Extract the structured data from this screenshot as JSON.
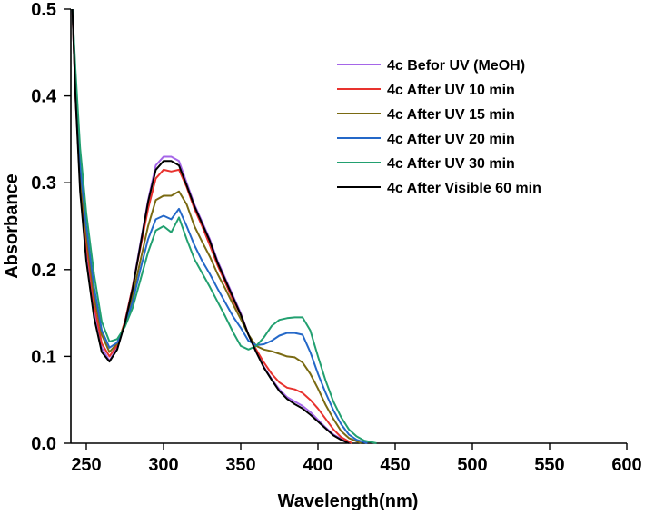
{
  "chart_data": {
    "type": "line",
    "title": "",
    "xlabel": "Wavelength(nm)",
    "ylabel": "Absorbance",
    "xlim": [
      240,
      600
    ],
    "ylim": [
      0.0,
      0.5
    ],
    "x_ticks": [
      250,
      300,
      350,
      400,
      450,
      500,
      550,
      600
    ],
    "y_ticks": [
      0.0,
      0.1,
      0.2,
      0.3,
      0.4,
      0.5
    ],
    "x_tick_labels": [
      "250",
      "300",
      "350",
      "400",
      "450",
      "500",
      "550",
      "600"
    ],
    "y_tick_labels": [
      "0.0",
      "0.1",
      "0.2",
      "0.3",
      "0.4",
      "0.5"
    ],
    "grid": false,
    "legend_position": "top-right",
    "series": [
      {
        "name": "4c Befor UV (MeOH)",
        "color": "#a566e8",
        "points": [
          [
            241,
            0.5
          ],
          [
            243,
            0.4
          ],
          [
            246,
            0.3
          ],
          [
            250,
            0.22
          ],
          [
            255,
            0.15
          ],
          [
            260,
            0.11
          ],
          [
            265,
            0.095
          ],
          [
            270,
            0.11
          ],
          [
            275,
            0.14
          ],
          [
            280,
            0.18
          ],
          [
            285,
            0.23
          ],
          [
            290,
            0.28
          ],
          [
            295,
            0.32
          ],
          [
            300,
            0.33
          ],
          [
            305,
            0.33
          ],
          [
            310,
            0.325
          ],
          [
            315,
            0.3
          ],
          [
            320,
            0.275
          ],
          [
            325,
            0.255
          ],
          [
            330,
            0.235
          ],
          [
            335,
            0.21
          ],
          [
            340,
            0.19
          ],
          [
            345,
            0.17
          ],
          [
            350,
            0.15
          ],
          [
            355,
            0.125
          ],
          [
            360,
            0.105
          ],
          [
            365,
            0.088
          ],
          [
            370,
            0.074
          ],
          [
            375,
            0.062
          ],
          [
            380,
            0.053
          ],
          [
            385,
            0.048
          ],
          [
            390,
            0.043
          ],
          [
            395,
            0.036
          ],
          [
            400,
            0.027
          ],
          [
            405,
            0.018
          ],
          [
            410,
            0.01
          ],
          [
            415,
            0.005
          ],
          [
            420,
            0.0
          ]
        ]
      },
      {
        "name": "4c After UV 10 min",
        "color": "#e8322e",
        "points": [
          [
            241,
            0.5
          ],
          [
            243,
            0.4
          ],
          [
            246,
            0.3
          ],
          [
            250,
            0.23
          ],
          [
            255,
            0.16
          ],
          [
            260,
            0.115
          ],
          [
            265,
            0.1
          ],
          [
            270,
            0.113
          ],
          [
            275,
            0.14
          ],
          [
            280,
            0.18
          ],
          [
            285,
            0.225
          ],
          [
            290,
            0.27
          ],
          [
            295,
            0.305
          ],
          [
            300,
            0.315
          ],
          [
            305,
            0.313
          ],
          [
            310,
            0.315
          ],
          [
            315,
            0.295
          ],
          [
            320,
            0.27
          ],
          [
            325,
            0.25
          ],
          [
            330,
            0.228
          ],
          [
            335,
            0.205
          ],
          [
            340,
            0.185
          ],
          [
            345,
            0.165
          ],
          [
            350,
            0.148
          ],
          [
            355,
            0.125
          ],
          [
            360,
            0.108
          ],
          [
            365,
            0.093
          ],
          [
            370,
            0.08
          ],
          [
            375,
            0.07
          ],
          [
            380,
            0.064
          ],
          [
            385,
            0.062
          ],
          [
            390,
            0.058
          ],
          [
            395,
            0.05
          ],
          [
            400,
            0.04
          ],
          [
            405,
            0.028
          ],
          [
            410,
            0.016
          ],
          [
            415,
            0.007
          ],
          [
            422,
            0.0
          ]
        ]
      },
      {
        "name": "4c After UV 15 min",
        "color": "#7a6a12",
        "points": [
          [
            241,
            0.5
          ],
          [
            243,
            0.41
          ],
          [
            246,
            0.31
          ],
          [
            250,
            0.24
          ],
          [
            255,
            0.17
          ],
          [
            260,
            0.125
          ],
          [
            265,
            0.105
          ],
          [
            270,
            0.115
          ],
          [
            275,
            0.138
          ],
          [
            280,
            0.17
          ],
          [
            285,
            0.21
          ],
          [
            290,
            0.25
          ],
          [
            295,
            0.28
          ],
          [
            300,
            0.285
          ],
          [
            305,
            0.285
          ],
          [
            310,
            0.29
          ],
          [
            315,
            0.275
          ],
          [
            320,
            0.25
          ],
          [
            325,
            0.232
          ],
          [
            330,
            0.215
          ],
          [
            335,
            0.195
          ],
          [
            340,
            0.178
          ],
          [
            345,
            0.16
          ],
          [
            350,
            0.143
          ],
          [
            355,
            0.125
          ],
          [
            360,
            0.112
          ],
          [
            365,
            0.108
          ],
          [
            370,
            0.106
          ],
          [
            375,
            0.103
          ],
          [
            380,
            0.1
          ],
          [
            385,
            0.099
          ],
          [
            390,
            0.093
          ],
          [
            395,
            0.08
          ],
          [
            400,
            0.063
          ],
          [
            405,
            0.044
          ],
          [
            410,
            0.028
          ],
          [
            415,
            0.014
          ],
          [
            420,
            0.006
          ],
          [
            428,
            0.0
          ]
        ]
      },
      {
        "name": "4c After UV 20 min",
        "color": "#2468c8",
        "points": [
          [
            241,
            0.5
          ],
          [
            243,
            0.42
          ],
          [
            246,
            0.32
          ],
          [
            250,
            0.25
          ],
          [
            255,
            0.18
          ],
          [
            260,
            0.13
          ],
          [
            265,
            0.11
          ],
          [
            270,
            0.116
          ],
          [
            275,
            0.135
          ],
          [
            280,
            0.163
          ],
          [
            285,
            0.2
          ],
          [
            290,
            0.235
          ],
          [
            295,
            0.258
          ],
          [
            300,
            0.262
          ],
          [
            305,
            0.258
          ],
          [
            310,
            0.27
          ],
          [
            315,
            0.25
          ],
          [
            320,
            0.228
          ],
          [
            325,
            0.21
          ],
          [
            330,
            0.195
          ],
          [
            335,
            0.178
          ],
          [
            340,
            0.162
          ],
          [
            345,
            0.146
          ],
          [
            350,
            0.133
          ],
          [
            355,
            0.118
          ],
          [
            360,
            0.113
          ],
          [
            365,
            0.114
          ],
          [
            370,
            0.118
          ],
          [
            375,
            0.124
          ],
          [
            380,
            0.127
          ],
          [
            385,
            0.127
          ],
          [
            390,
            0.125
          ],
          [
            395,
            0.105
          ],
          [
            400,
            0.08
          ],
          [
            405,
            0.058
          ],
          [
            410,
            0.038
          ],
          [
            415,
            0.022
          ],
          [
            420,
            0.01
          ],
          [
            425,
            0.004
          ],
          [
            432,
            0.0
          ]
        ]
      },
      {
        "name": "4c After UV 30 min",
        "color": "#22a070",
        "points": [
          [
            241,
            0.5
          ],
          [
            243,
            0.43
          ],
          [
            246,
            0.34
          ],
          [
            250,
            0.265
          ],
          [
            255,
            0.195
          ],
          [
            260,
            0.14
          ],
          [
            265,
            0.117
          ],
          [
            270,
            0.12
          ],
          [
            275,
            0.134
          ],
          [
            280,
            0.156
          ],
          [
            285,
            0.188
          ],
          [
            290,
            0.22
          ],
          [
            295,
            0.245
          ],
          [
            300,
            0.25
          ],
          [
            305,
            0.243
          ],
          [
            310,
            0.26
          ],
          [
            315,
            0.235
          ],
          [
            320,
            0.212
          ],
          [
            325,
            0.196
          ],
          [
            330,
            0.18
          ],
          [
            335,
            0.163
          ],
          [
            340,
            0.146
          ],
          [
            345,
            0.128
          ],
          [
            350,
            0.112
          ],
          [
            355,
            0.108
          ],
          [
            360,
            0.112
          ],
          [
            365,
            0.122
          ],
          [
            370,
            0.135
          ],
          [
            375,
            0.142
          ],
          [
            380,
            0.144
          ],
          [
            385,
            0.145
          ],
          [
            390,
            0.145
          ],
          [
            395,
            0.13
          ],
          [
            400,
            0.1
          ],
          [
            405,
            0.072
          ],
          [
            410,
            0.048
          ],
          [
            415,
            0.03
          ],
          [
            420,
            0.016
          ],
          [
            425,
            0.008
          ],
          [
            430,
            0.003
          ],
          [
            438,
            0.0
          ]
        ]
      },
      {
        "name": "4c After Visible 60 min",
        "color": "#000000",
        "points": [
          [
            241,
            0.5
          ],
          [
            243,
            0.4
          ],
          [
            246,
            0.29
          ],
          [
            250,
            0.21
          ],
          [
            255,
            0.145
          ],
          [
            260,
            0.105
          ],
          [
            265,
            0.094
          ],
          [
            270,
            0.108
          ],
          [
            275,
            0.138
          ],
          [
            280,
            0.178
          ],
          [
            285,
            0.228
          ],
          [
            290,
            0.278
          ],
          [
            295,
            0.315
          ],
          [
            300,
            0.325
          ],
          [
            305,
            0.325
          ],
          [
            310,
            0.32
          ],
          [
            315,
            0.297
          ],
          [
            320,
            0.273
          ],
          [
            325,
            0.253
          ],
          [
            330,
            0.233
          ],
          [
            335,
            0.208
          ],
          [
            340,
            0.188
          ],
          [
            345,
            0.168
          ],
          [
            350,
            0.148
          ],
          [
            355,
            0.125
          ],
          [
            360,
            0.105
          ],
          [
            365,
            0.087
          ],
          [
            370,
            0.073
          ],
          [
            375,
            0.06
          ],
          [
            380,
            0.051
          ],
          [
            385,
            0.045
          ],
          [
            390,
            0.04
          ],
          [
            395,
            0.033
          ],
          [
            400,
            0.025
          ],
          [
            405,
            0.017
          ],
          [
            410,
            0.009
          ],
          [
            415,
            0.004
          ],
          [
            420,
            0.0
          ]
        ]
      }
    ]
  }
}
